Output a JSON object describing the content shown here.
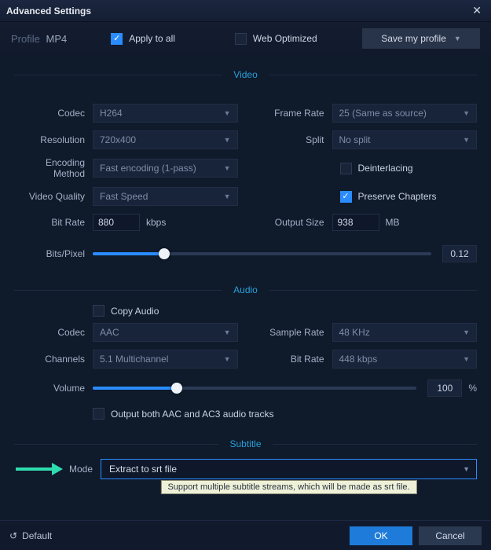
{
  "titlebar": {
    "title": "Advanced Settings"
  },
  "top": {
    "profile_label": "Profile",
    "profile_value": "MP4",
    "apply_all": {
      "label": "Apply to all",
      "checked": true
    },
    "web_opt": {
      "label": "Web Optimized",
      "checked": false
    },
    "save_profile": "Save my profile"
  },
  "sections": {
    "video": "Video",
    "audio": "Audio",
    "subtitle": "Subtitle"
  },
  "video": {
    "codec": {
      "label": "Codec",
      "value": "H264"
    },
    "resolution": {
      "label": "Resolution",
      "value": "720x400"
    },
    "encoding": {
      "label": "Encoding Method",
      "value": "Fast encoding (1-pass)"
    },
    "quality": {
      "label": "Video Quality",
      "value": "Fast Speed"
    },
    "bitrate": {
      "label": "Bit Rate",
      "value": "880",
      "unit": "kbps"
    },
    "framerate": {
      "label": "Frame Rate",
      "value": "25 (Same as source)"
    },
    "split": {
      "label": "Split",
      "value": "No split"
    },
    "deinterlacing": {
      "label": "Deinterlacing",
      "checked": false
    },
    "preserve": {
      "label": "Preserve Chapters",
      "checked": true
    },
    "outputsize": {
      "label": "Output Size",
      "value": "938",
      "unit": "MB"
    },
    "bitspixel": {
      "label": "Bits/Pixel",
      "percent": 21,
      "value": "0.12"
    }
  },
  "audio": {
    "copy": {
      "label": "Copy Audio",
      "checked": false
    },
    "codec": {
      "label": "Codec",
      "value": "AAC"
    },
    "channels": {
      "label": "Channels",
      "value": "5.1 Multichannel"
    },
    "samplerate": {
      "label": "Sample Rate",
      "value": "48 KHz"
    },
    "bitrate": {
      "label": "Bit Rate",
      "value": "448 kbps"
    },
    "volume": {
      "label": "Volume",
      "percent": 26,
      "value": "100",
      "unit": "%"
    },
    "both": {
      "label": "Output both AAC and AC3 audio tracks",
      "checked": false
    }
  },
  "subtitle": {
    "mode": {
      "label": "Mode",
      "value": "Extract to srt file"
    },
    "tooltip": "Support multiple subtitle streams, which will be made as srt file."
  },
  "footer": {
    "default": "Default",
    "ok": "OK",
    "cancel": "Cancel"
  },
  "colors": {
    "accent": "#2a8cff",
    "arrow": "#2fdcb0"
  }
}
